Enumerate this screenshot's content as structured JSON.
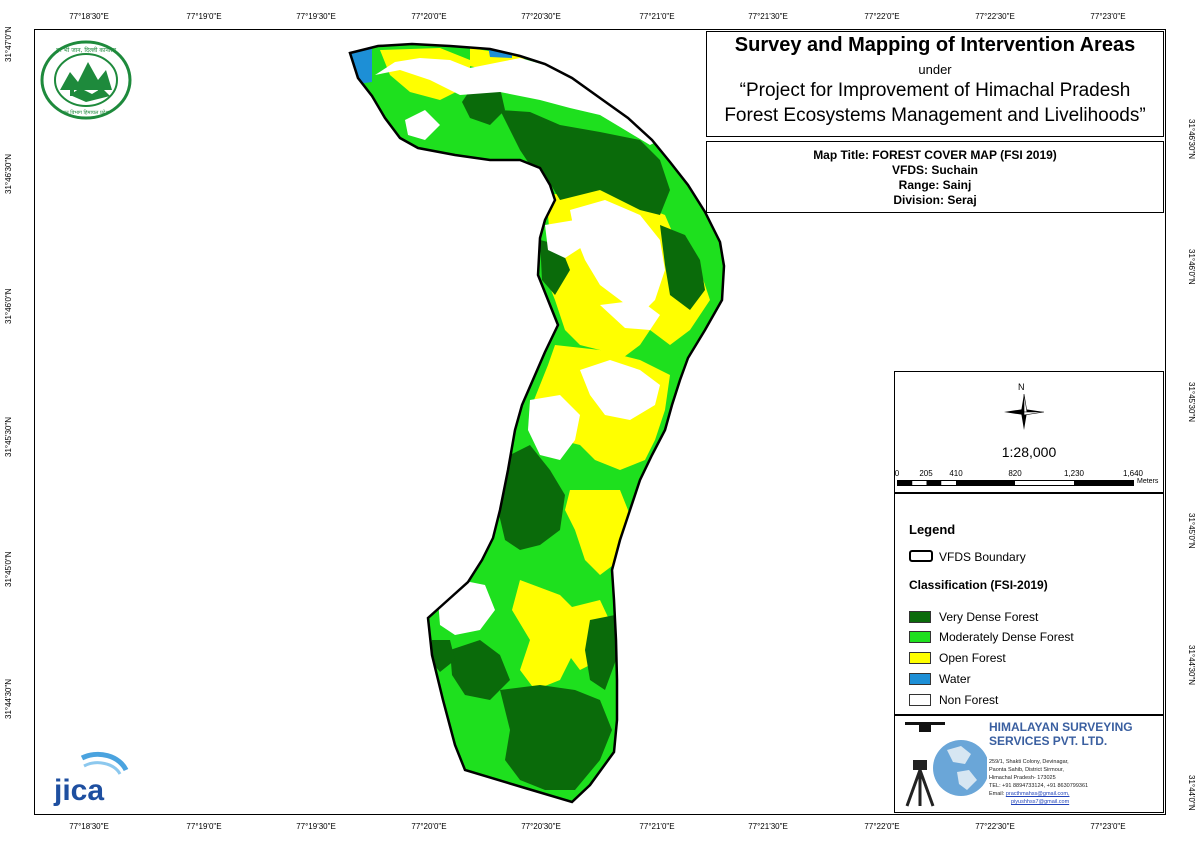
{
  "title_block": {
    "main_title": "Survey and Mapping of Intervention Areas",
    "under": "under",
    "project_line1": "“Project for Improvement of Himachal Pradesh",
    "project_line2": "Forest Ecosystems Management and Livelihoods”"
  },
  "map_info": {
    "map_title": "Map Title: FOREST COVER MAP (FSI 2019)",
    "vfds": "VFDS: Suchain",
    "range": "Range: Sainj",
    "division": "Division: Seraj"
  },
  "grid_labels": {
    "top": [
      "77°18'30\"E",
      "77°19'0\"E",
      "77°19'30\"E",
      "77°20'0\"E",
      "77°20'30\"E",
      "77°21'0\"E",
      "77°21'30\"E",
      "77°22'0\"E",
      "77°22'30\"E",
      "77°23'0\"E"
    ],
    "bottom": [
      "77°18'30\"E",
      "77°19'0\"E",
      "77°19'30\"E",
      "77°20'0\"E",
      "77°20'30\"E",
      "77°21'0\"E",
      "77°21'30\"E",
      "77°22'0\"E",
      "77°22'30\"E",
      "77°23'0\"E"
    ],
    "left": [
      "31°47'0\"N",
      "31°46'30\"N",
      "31°46'0\"N",
      "31°45'30\"N",
      "31°45'0\"N",
      "31°44'30\"N"
    ],
    "right": [
      "31°46'30\"N",
      "31°46'0\"N",
      "31°45'30\"N",
      "31°45'0\"N",
      "31°44'30\"N",
      "31°44'0\"N"
    ]
  },
  "north_arrow": {
    "label": "N"
  },
  "scale": {
    "ratio": "1:28,000",
    "ticks": [
      "0",
      "205",
      "410",
      "820",
      "1,230",
      "1,640"
    ],
    "unit": "Meters"
  },
  "legend": {
    "title": "Legend",
    "boundary_label": "VFDS Boundary",
    "classification_title": "Classification (FSI-2019)",
    "classes": [
      {
        "label": "Very Dense Forest",
        "color": "#0a6b0a"
      },
      {
        "label": "Moderately Dense Forest",
        "color": "#1ee01e"
      },
      {
        "label": "Open Forest",
        "color": "#ffff00"
      },
      {
        "label": "Water",
        "color": "#1d8fd6"
      },
      {
        "label": "Non Forest",
        "color": "#ffffff"
      }
    ]
  },
  "company": {
    "name_line1": "HIMALAYAN SURVEYING",
    "name_line2": "SERVICES PVT. LTD.",
    "address": [
      "259/1, Shakti Colony, Devinagar,",
      "Paonta Sahib, District Sirmour,",
      "Himachal Pradesh- 173025",
      "TEL: +91 8894733124, +91 8630799361"
    ],
    "email_label": "Email:",
    "emails": [
      "practhmahss@gmail.com,",
      "piyushhss7@gmail.com"
    ]
  },
  "logos": {
    "hp_forest_text": "हर भी जान, दिल्ली कानाला",
    "hp_forest_bottom": "वन विभाग हिमाचल प्रदेश",
    "jica": "JICA"
  }
}
